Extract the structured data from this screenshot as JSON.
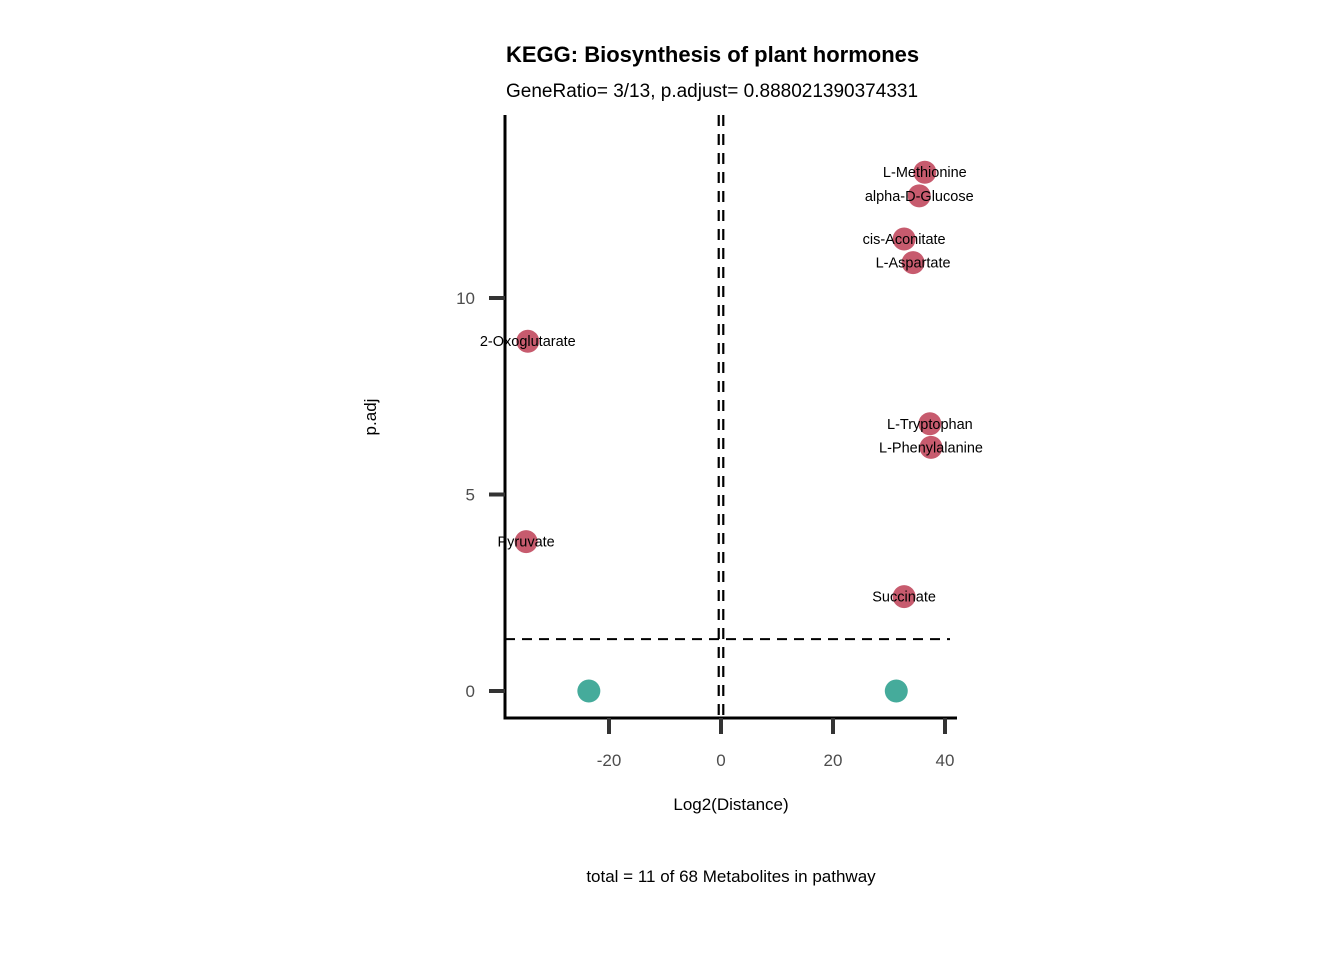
{
  "chart_data": {
    "type": "scatter",
    "title": "KEGG: Biosynthesis of plant hormones",
    "subtitle": "GeneRatio= 3/13, p.adjust= 0.888021390374331",
    "xlabel": "Log2(Distance)",
    "ylabel": "p.adj",
    "caption": "total = 11 of 68 Metabolites in pathway",
    "xlim": [
      -38,
      42
    ],
    "ylim": [
      -0.7,
      14.8
    ],
    "xticks": [
      -20,
      0,
      20,
      40
    ],
    "xtick_labels": [
      "-20",
      "0",
      "20",
      "40"
    ],
    "yticks": [
      0,
      5,
      10
    ],
    "ytick_labels": [
      "0",
      "5",
      "10"
    ],
    "grid": false,
    "legend": "none",
    "hline": 1.32,
    "vlines": [
      -0.3,
      0.3
    ],
    "colors": {
      "significant": "#c75b6e",
      "not_significant": "#45ab9b"
    },
    "points": [
      {
        "label": "L-Methionine",
        "x": 36.4,
        "y": 13.2,
        "group": "significant"
      },
      {
        "label": "alpha-D-Glucose",
        "x": 35.4,
        "y": 12.6,
        "group": "significant"
      },
      {
        "label": "cis-Aconitate",
        "x": 32.7,
        "y": 11.5,
        "group": "significant"
      },
      {
        "label": "L-Aspartate",
        "x": 34.3,
        "y": 10.9,
        "group": "significant"
      },
      {
        "label": "2-Oxoglutarate",
        "x": -34.5,
        "y": 8.9,
        "group": "significant"
      },
      {
        "label": "L-Tryptophan",
        "x": 37.3,
        "y": 6.8,
        "group": "significant"
      },
      {
        "label": "L-Phenylalanine",
        "x": 37.5,
        "y": 6.2,
        "group": "significant"
      },
      {
        "label": "Pyruvate",
        "x": -34.8,
        "y": 3.8,
        "group": "significant"
      },
      {
        "label": "Succinate",
        "x": 32.7,
        "y": 2.4,
        "group": "significant"
      },
      {
        "label": "",
        "x": -23.6,
        "y": 0,
        "group": "not_significant"
      },
      {
        "label": "",
        "x": 31.3,
        "y": 0,
        "group": "not_significant"
      }
    ],
    "label_offsets": [
      {
        "label": "L-Methionine",
        "dx": 0,
        "dy": 0
      },
      {
        "label": "alpha-D-Glucose",
        "dx": 0,
        "dy": 0
      },
      {
        "label": "cis-Aconitate",
        "dx": 0,
        "dy": 0
      },
      {
        "label": "L-Aspartate",
        "dx": 0,
        "dy": 0
      },
      {
        "label": "2-Oxoglutarate",
        "dx": 0,
        "dy": 0
      },
      {
        "label": "L-Tryptophan",
        "dx": 0,
        "dy": 0
      },
      {
        "label": "L-Phenylalanine",
        "dx": 0,
        "dy": 0
      },
      {
        "label": "Pyruvate",
        "dx": 0,
        "dy": 0
      },
      {
        "label": "Succinate",
        "dx": 0,
        "dy": 0
      }
    ]
  }
}
